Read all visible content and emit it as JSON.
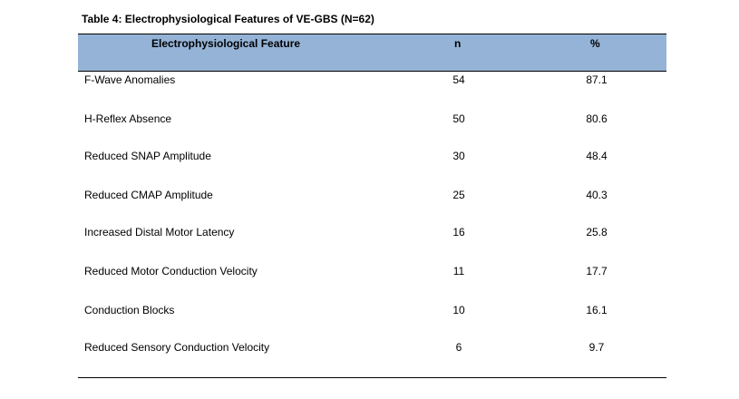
{
  "caption": "Table 4: Electrophysiological Features of VE-GBS (N=62)",
  "header": {
    "feature": "Electrophysiological Feature",
    "n": "n",
    "pct": "%"
  },
  "colors": {
    "header_background": "#95b3d7",
    "rule": "#000000"
  },
  "rows": [
    {
      "feature": "F-Wave Anomalies",
      "n": "54",
      "pct": "87.1"
    },
    {
      "feature": "H-Reflex Absence",
      "n": "50",
      "pct": "80.6"
    },
    {
      "feature": "Reduced SNAP Amplitude",
      "n": "30",
      "pct": "48.4"
    },
    {
      "feature": "Reduced CMAP Amplitude",
      "n": "25",
      "pct": "40.3"
    },
    {
      "feature": "Increased Distal Motor Latency",
      "n": "16",
      "pct": "25.8"
    },
    {
      "feature": "Reduced Motor Conduction Velocity",
      "n": "11",
      "pct": "17.7"
    },
    {
      "feature": "Conduction Blocks",
      "n": "10",
      "pct": "16.1"
    },
    {
      "feature": "Reduced Sensory Conduction Velocity",
      "n": "6",
      "pct": "9.7"
    }
  ]
}
